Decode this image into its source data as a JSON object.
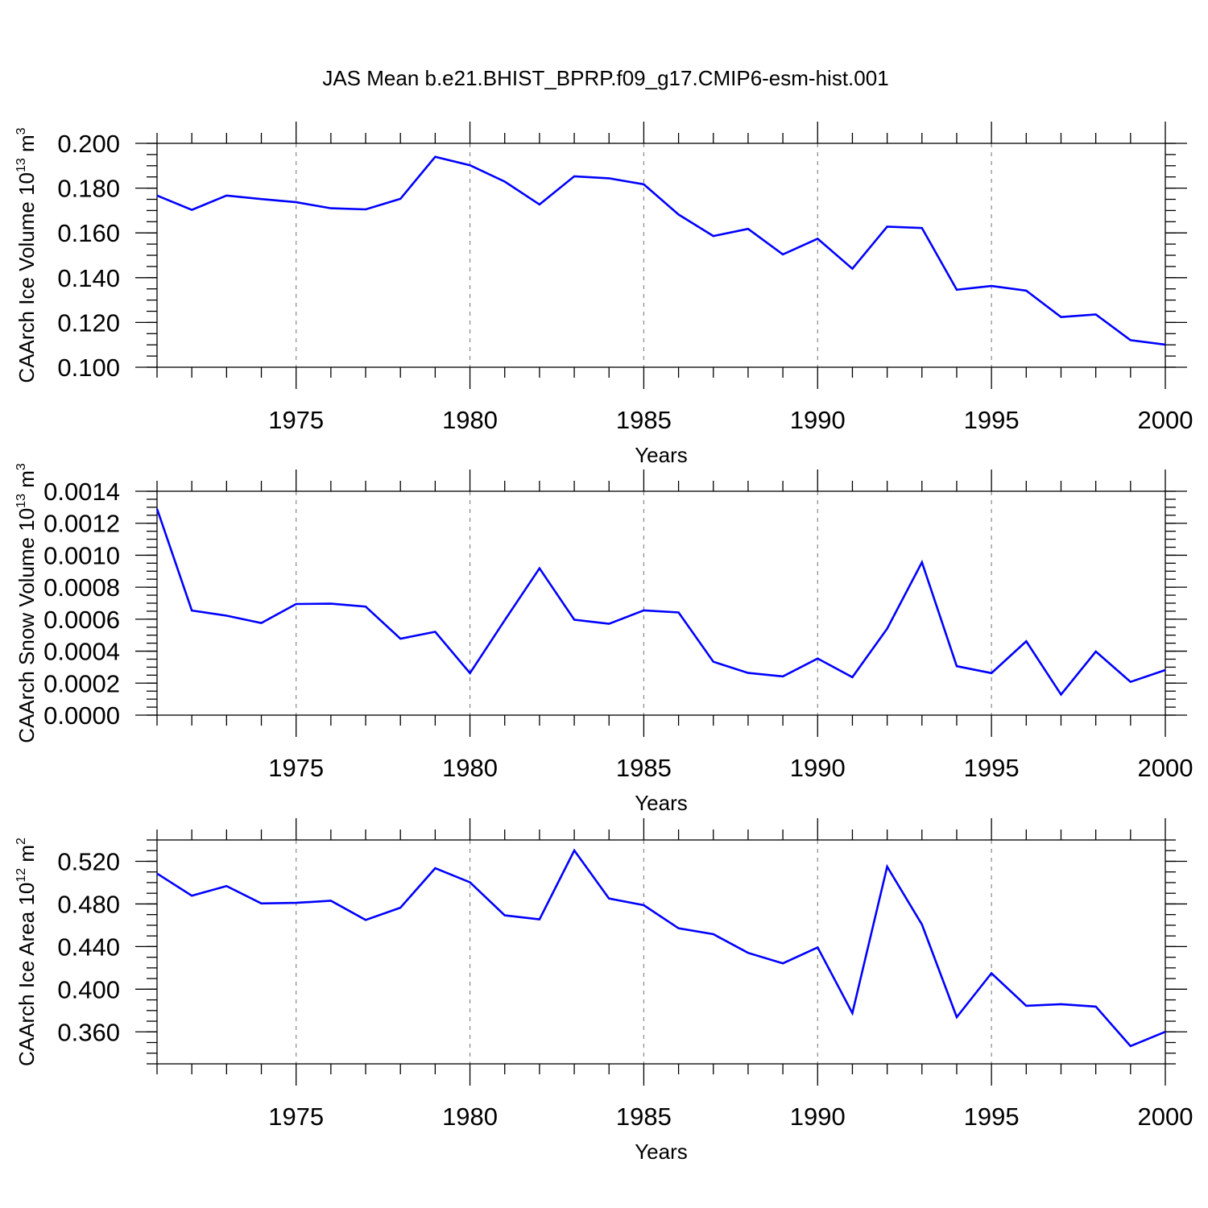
{
  "title": "JAS Mean b.e21.BHIST_BPRP.f09_g17.CMIP6-esm-hist.001",
  "colors": {
    "line": "#0000ff",
    "axis": "#000000",
    "grid": "#888888"
  },
  "chart_data": [
    {
      "type": "line",
      "ylabel": {
        "prefix": "CAArch Ice Volume 10",
        "exp": "13",
        "unit": " m",
        "unit_exp": "3"
      },
      "xlabel": "Years",
      "xlim": [
        1971,
        2000
      ],
      "ylim": [
        0.1,
        0.2
      ],
      "xticks": [
        "1975",
        "1980",
        "1985",
        "1990",
        "1995",
        "2000"
      ],
      "yticks": [
        "0.100",
        "0.120",
        "0.140",
        "0.160",
        "0.180",
        "0.200"
      ],
      "grid": "vertical dashed at major x ticks",
      "x": [
        1971,
        1972,
        1973,
        1974,
        1975,
        1976,
        1977,
        1978,
        1979,
        1980,
        1981,
        1982,
        1983,
        1984,
        1985,
        1986,
        1987,
        1988,
        1989,
        1990,
        1991,
        1992,
        1993,
        1994,
        1995,
        1996,
        1997,
        1998,
        1999,
        2000
      ],
      "values": [
        0.1767,
        0.1703,
        0.1767,
        0.1751,
        0.1737,
        0.171,
        0.1705,
        0.1752,
        0.194,
        0.1902,
        0.1829,
        0.1727,
        0.1853,
        0.1844,
        0.1817,
        0.1682,
        0.1586,
        0.1618,
        0.1504,
        0.1574,
        0.144,
        0.1628,
        0.1622,
        0.1346,
        0.1363,
        0.1342,
        0.1224,
        0.1236,
        0.1121,
        0.1101
      ]
    },
    {
      "type": "line",
      "ylabel": {
        "prefix": "CAArch Snow Volume 10",
        "exp": "13",
        "unit": " m",
        "unit_exp": "3"
      },
      "xlabel": "Years",
      "xlim": [
        1971,
        2000
      ],
      "ylim": [
        0.0,
        0.0014
      ],
      "xticks": [
        "1975",
        "1980",
        "1985",
        "1990",
        "1995",
        "2000"
      ],
      "yticks": [
        "0.0000",
        "0.0002",
        "0.0004",
        "0.0006",
        "0.0008",
        "0.0010",
        "0.0012",
        "0.0014"
      ],
      "grid": "vertical dashed at major x ticks",
      "x": [
        1971,
        1972,
        1973,
        1974,
        1975,
        1976,
        1977,
        1978,
        1979,
        1980,
        1981,
        1982,
        1983,
        1984,
        1985,
        1986,
        1987,
        1988,
        1989,
        1990,
        1991,
        1992,
        1993,
        1994,
        1995,
        1996,
        1997,
        1998,
        1999,
        2000
      ],
      "values": [
        0.00129,
        0.000654,
        0.000622,
        0.000576,
        0.000695,
        0.000697,
        0.000679,
        0.000478,
        0.000521,
        0.000263,
        0.000593,
        0.000918,
        0.000597,
        0.000571,
        0.000655,
        0.000642,
        0.000334,
        0.000264,
        0.000242,
        0.000354,
        0.000237,
        0.000541,
        0.000956,
        0.000306,
        0.000263,
        0.000462,
        0.000129,
        0.000398,
        0.000208,
        0.000282
      ]
    },
    {
      "type": "line",
      "ylabel": {
        "prefix": "CAArch Ice Area 10",
        "exp": "12",
        "unit": " m",
        "unit_exp": "2"
      },
      "xlabel": "Years",
      "xlim": [
        1971,
        2000
      ],
      "ylim": [
        0.33,
        0.54
      ],
      "xticks": [
        "1975",
        "1980",
        "1985",
        "1990",
        "1995",
        "2000"
      ],
      "yticks": [
        "0.360",
        "0.400",
        "0.440",
        "0.480",
        "0.520"
      ],
      "grid": "vertical dashed at major x ticks",
      "x": [
        1971,
        1972,
        1973,
        1974,
        1975,
        1976,
        1977,
        1978,
        1979,
        1980,
        1981,
        1982,
        1983,
        1984,
        1985,
        1986,
        1987,
        1988,
        1989,
        1990,
        1991,
        1992,
        1993,
        1994,
        1995,
        1996,
        1997,
        1998,
        1999,
        2000
      ],
      "values": [
        0.5085,
        0.4877,
        0.4968,
        0.4805,
        0.481,
        0.483,
        0.465,
        0.4765,
        0.5135,
        0.5003,
        0.4693,
        0.4655,
        0.5302,
        0.4851,
        0.4788,
        0.4571,
        0.4516,
        0.4341,
        0.4243,
        0.4392,
        0.3776,
        0.515,
        0.4607,
        0.3738,
        0.415,
        0.3845,
        0.386,
        0.3837,
        0.3466,
        0.3601
      ]
    }
  ]
}
